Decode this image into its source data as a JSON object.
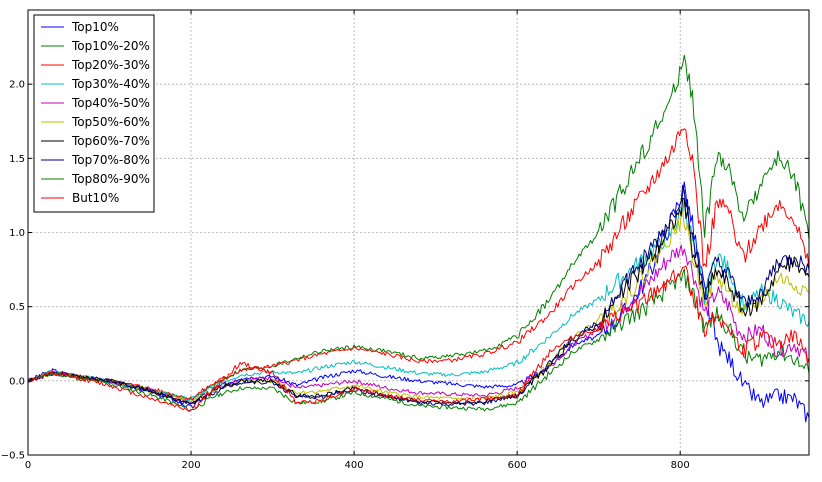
{
  "chart_data": {
    "type": "line",
    "title": "",
    "xlabel": "",
    "ylabel": "",
    "xlim": [
      0,
      958
    ],
    "ylim": [
      -0.5,
      2.5
    ],
    "x_ticks": [
      0,
      200,
      400,
      600,
      800
    ],
    "y_ticks": [
      -0.5,
      0.0,
      0.5,
      1.0,
      1.5,
      2.0
    ],
    "x_tick_labels": [
      "0",
      "200",
      "400",
      "600",
      "800"
    ],
    "y_tick_labels": [
      "−0.5",
      "0.0",
      "0.5",
      "1.0",
      "1.5",
      "2.0"
    ],
    "grid": true,
    "legend_position": "top-left",
    "series": [
      {
        "name": "Top10%",
        "color": "#0000ff",
        "x": [
          0,
          30,
          60,
          100,
          140,
          170,
          200,
          230,
          260,
          300,
          330,
          360,
          400,
          440,
          480,
          520,
          560,
          600,
          640,
          670,
          700,
          730,
          760,
          790,
          805,
          815,
          830,
          845,
          860,
          870,
          880,
          900,
          920,
          940,
          958
        ],
        "y": [
          0.0,
          0.07,
          0.03,
          0.0,
          -0.06,
          -0.11,
          -0.18,
          -0.05,
          0.02,
          0.03,
          -0.03,
          0.02,
          0.07,
          0.03,
          0.0,
          -0.02,
          -0.04,
          -0.03,
          0.1,
          0.25,
          0.3,
          0.45,
          0.7,
          1.1,
          1.3,
          1.05,
          0.6,
          0.25,
          0.15,
          0.05,
          -0.05,
          -0.15,
          -0.1,
          -0.12,
          -0.25
        ]
      },
      {
        "name": "Top10%-20%",
        "color": "#008000",
        "x": [
          0,
          30,
          60,
          100,
          140,
          170,
          200,
          230,
          260,
          300,
          330,
          360,
          400,
          440,
          480,
          520,
          560,
          600,
          640,
          670,
          700,
          730,
          760,
          790,
          805,
          815,
          830,
          845,
          860,
          870,
          880,
          900,
          920,
          940,
          958
        ],
        "y": [
          0.0,
          0.06,
          0.03,
          0.0,
          -0.05,
          -0.09,
          -0.13,
          -0.02,
          0.07,
          0.1,
          0.15,
          0.2,
          0.23,
          0.2,
          0.15,
          0.17,
          0.2,
          0.3,
          0.55,
          0.8,
          1.0,
          1.3,
          1.6,
          1.9,
          2.2,
          1.9,
          1.0,
          1.5,
          1.45,
          1.2,
          1.1,
          1.35,
          1.5,
          1.4,
          0.95
        ]
      },
      {
        "name": "Top20%-30%",
        "color": "#ff0000",
        "x": [
          0,
          30,
          60,
          100,
          140,
          170,
          200,
          230,
          260,
          300,
          330,
          360,
          400,
          440,
          480,
          520,
          560,
          600,
          640,
          670,
          700,
          730,
          760,
          790,
          805,
          815,
          830,
          845,
          860,
          870,
          880,
          900,
          920,
          940,
          958
        ],
        "y": [
          0.0,
          0.06,
          0.03,
          0.0,
          -0.04,
          -0.08,
          -0.12,
          -0.01,
          0.07,
          0.1,
          0.14,
          0.18,
          0.22,
          0.18,
          0.13,
          0.14,
          0.18,
          0.26,
          0.45,
          0.65,
          0.8,
          1.05,
          1.3,
          1.55,
          1.75,
          1.5,
          0.75,
          1.2,
          1.15,
          0.9,
          0.85,
          1.05,
          1.2,
          1.1,
          0.75
        ]
      },
      {
        "name": "Top30%-40%",
        "color": "#00bfbf",
        "x": [
          0,
          30,
          60,
          100,
          140,
          170,
          200,
          230,
          260,
          300,
          330,
          360,
          400,
          440,
          480,
          520,
          560,
          600,
          640,
          670,
          700,
          730,
          760,
          790,
          805,
          815,
          830,
          845,
          860,
          870,
          880,
          900,
          920,
          940,
          958
        ],
        "y": [
          0.0,
          0.06,
          0.03,
          0.0,
          -0.05,
          -0.09,
          -0.13,
          -0.03,
          0.04,
          0.06,
          0.05,
          0.09,
          0.13,
          0.09,
          0.05,
          0.04,
          0.06,
          0.12,
          0.3,
          0.45,
          0.55,
          0.7,
          0.85,
          1.0,
          1.2,
          0.95,
          0.55,
          0.85,
          0.75,
          0.6,
          0.5,
          0.6,
          0.55,
          0.45,
          0.4
        ]
      },
      {
        "name": "Top40%-50%",
        "color": "#bf00bf",
        "x": [
          0,
          30,
          60,
          100,
          140,
          170,
          200,
          230,
          260,
          300,
          330,
          360,
          400,
          440,
          480,
          520,
          560,
          600,
          640,
          670,
          700,
          730,
          760,
          790,
          805,
          815,
          830,
          845,
          860,
          870,
          880,
          900,
          920,
          940,
          958
        ],
        "y": [
          0.0,
          0.05,
          0.03,
          0.0,
          -0.05,
          -0.1,
          -0.15,
          -0.05,
          0.01,
          0.02,
          -0.05,
          -0.03,
          0.0,
          -0.05,
          -0.08,
          -0.09,
          -0.1,
          -0.05,
          0.1,
          0.25,
          0.35,
          0.5,
          0.65,
          0.85,
          0.9,
          0.75,
          0.45,
          0.6,
          0.5,
          0.35,
          0.3,
          0.35,
          0.2,
          0.25,
          0.15
        ]
      },
      {
        "name": "Top50%-60%",
        "color": "#bfbf00",
        "x": [
          0,
          30,
          60,
          100,
          140,
          170,
          200,
          230,
          260,
          300,
          330,
          360,
          400,
          440,
          480,
          520,
          560,
          600,
          640,
          670,
          700,
          730,
          760,
          790,
          805,
          815,
          830,
          845,
          860,
          870,
          880,
          900,
          920,
          940,
          958
        ],
        "y": [
          0.0,
          0.05,
          0.03,
          0.0,
          -0.05,
          -0.1,
          -0.15,
          -0.06,
          0.0,
          0.0,
          -0.08,
          -0.07,
          -0.03,
          -0.08,
          -0.11,
          -0.12,
          -0.12,
          -0.08,
          0.12,
          0.3,
          0.4,
          0.55,
          0.75,
          1.0,
          1.1,
          0.85,
          0.55,
          0.7,
          0.6,
          0.5,
          0.45,
          0.55,
          0.7,
          0.65,
          0.6
        ]
      },
      {
        "name": "Top60%-70%",
        "color": "#000000",
        "x": [
          0,
          30,
          60,
          100,
          140,
          170,
          200,
          230,
          260,
          300,
          330,
          360,
          400,
          440,
          480,
          520,
          560,
          600,
          640,
          670,
          700,
          730,
          760,
          790,
          805,
          815,
          830,
          845,
          860,
          870,
          880,
          900,
          920,
          940,
          958
        ],
        "y": [
          0.0,
          0.05,
          0.03,
          0.0,
          -0.05,
          -0.1,
          -0.16,
          -0.06,
          0.0,
          0.0,
          -0.1,
          -0.1,
          -0.05,
          -0.1,
          -0.14,
          -0.15,
          -0.14,
          -0.1,
          0.1,
          0.28,
          0.38,
          0.6,
          0.8,
          1.05,
          1.2,
          0.9,
          0.55,
          0.75,
          0.65,
          0.55,
          0.45,
          0.55,
          0.75,
          0.8,
          0.7
        ]
      },
      {
        "name": "Top70%-80%",
        "color": "#00007f",
        "x": [
          0,
          30,
          60,
          100,
          140,
          170,
          200,
          230,
          260,
          300,
          330,
          360,
          400,
          440,
          480,
          520,
          560,
          600,
          640,
          670,
          700,
          730,
          760,
          790,
          805,
          815,
          830,
          845,
          860,
          870,
          880,
          900,
          920,
          940,
          958
        ],
        "y": [
          0.0,
          0.05,
          0.03,
          0.0,
          -0.05,
          -0.1,
          -0.16,
          -0.07,
          -0.01,
          -0.01,
          -0.11,
          -0.11,
          -0.06,
          -0.11,
          -0.15,
          -0.16,
          -0.15,
          -0.1,
          0.12,
          0.3,
          0.4,
          0.65,
          0.85,
          1.1,
          1.3,
          0.95,
          0.6,
          0.8,
          0.7,
          0.6,
          0.5,
          0.6,
          0.8,
          0.82,
          0.75
        ]
      },
      {
        "name": "Top80%-90%",
        "color": "#008000",
        "x": [
          0,
          30,
          60,
          100,
          140,
          170,
          200,
          230,
          260,
          300,
          330,
          360,
          400,
          440,
          480,
          520,
          560,
          600,
          640,
          670,
          700,
          730,
          760,
          790,
          805,
          815,
          830,
          845,
          860,
          870,
          880,
          900,
          920,
          940,
          958
        ],
        "y": [
          0.0,
          0.05,
          0.02,
          -0.02,
          -0.08,
          -0.13,
          -0.2,
          -0.1,
          -0.05,
          -0.05,
          -0.15,
          -0.14,
          -0.08,
          -0.12,
          -0.17,
          -0.18,
          -0.19,
          -0.15,
          0.05,
          0.2,
          0.28,
          0.4,
          0.5,
          0.65,
          0.7,
          0.6,
          0.35,
          0.45,
          0.35,
          0.25,
          0.15,
          0.15,
          0.2,
          0.15,
          0.05
        ]
      },
      {
        "name": "But10%",
        "color": "#ff0000",
        "x": [
          0,
          30,
          60,
          100,
          140,
          170,
          200,
          230,
          260,
          300,
          330,
          360,
          400,
          440,
          480,
          520,
          560,
          600,
          640,
          670,
          700,
          730,
          760,
          790,
          805,
          815,
          830,
          845,
          860,
          870,
          880,
          900,
          920,
          940,
          958
        ],
        "y": [
          0.0,
          0.05,
          0.02,
          -0.03,
          -0.1,
          -0.15,
          -0.2,
          -0.05,
          0.12,
          0.05,
          -0.15,
          -0.13,
          -0.05,
          -0.1,
          -0.13,
          -0.14,
          -0.12,
          -0.1,
          0.2,
          0.3,
          0.35,
          0.45,
          0.55,
          0.7,
          0.75,
          0.6,
          0.35,
          0.45,
          0.35,
          0.25,
          0.2,
          0.3,
          0.25,
          0.3,
          0.15
        ]
      }
    ]
  }
}
